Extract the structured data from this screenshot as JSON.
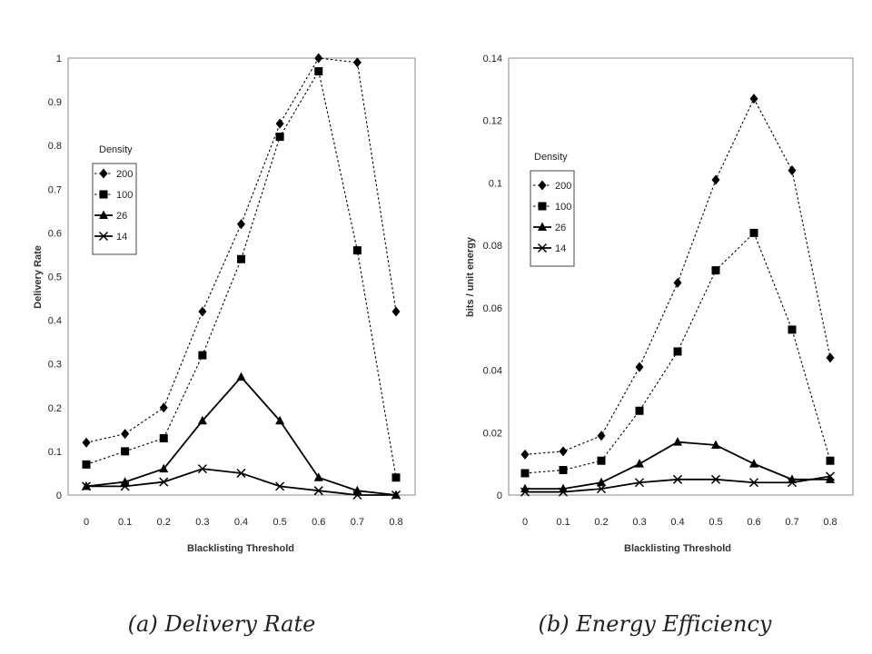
{
  "chart_data": [
    {
      "type": "line",
      "caption": "(a) Delivery Rate",
      "xlabel": "Blacklisting Threshold",
      "ylabel": "Delivery Rate",
      "x": [
        0,
        0.1,
        0.2,
        0.3,
        0.4,
        0.5,
        0.6,
        0.7,
        0.8
      ],
      "xlim": [
        0,
        0.8
      ],
      "ylim": [
        0,
        1
      ],
      "x_ticks": [
        "0",
        "0.1",
        "0.2",
        "0.3",
        "0.4",
        "0.5",
        "0.6",
        "0.7",
        "0.8"
      ],
      "y_ticks": [
        "0",
        "0.1",
        "0.2",
        "0.3",
        "0.4",
        "0.5",
        "0.6",
        "0.7",
        "0.8",
        "0.9",
        "1"
      ],
      "y_tick_values": [
        0,
        0.1,
        0.2,
        0.3,
        0.4,
        0.5,
        0.6,
        0.7,
        0.8,
        0.9,
        1
      ],
      "grid": false,
      "legend": {
        "title": "Density",
        "placement": "left-middle",
        "entries": [
          "200",
          "100",
          "26",
          "14"
        ]
      },
      "series": [
        {
          "name": "200",
          "marker": "diamond",
          "style": "dotted",
          "values": [
            0.12,
            0.14,
            0.2,
            0.42,
            0.62,
            0.85,
            1.0,
            0.99,
            0.42
          ]
        },
        {
          "name": "100",
          "marker": "square",
          "style": "dotted",
          "values": [
            0.07,
            0.1,
            0.13,
            0.32,
            0.54,
            0.82,
            0.97,
            0.56,
            0.04
          ]
        },
        {
          "name": "26",
          "marker": "triangle",
          "style": "solid",
          "values": [
            0.02,
            0.03,
            0.06,
            0.17,
            0.27,
            0.17,
            0.04,
            0.01,
            0.0
          ]
        },
        {
          "name": "14",
          "marker": "x",
          "style": "solid",
          "values": [
            0.02,
            0.02,
            0.03,
            0.06,
            0.05,
            0.02,
            0.01,
            0.0,
            0.0
          ]
        }
      ]
    },
    {
      "type": "line",
      "caption": "(b) Energy Efficiency",
      "xlabel": "Blacklisting Threshold",
      "ylabel": "bits / unit energy",
      "x": [
        0,
        0.1,
        0.2,
        0.3,
        0.4,
        0.5,
        0.6,
        0.7,
        0.8
      ],
      "xlim": [
        0,
        0.8
      ],
      "ylim": [
        0,
        0.14
      ],
      "x_ticks": [
        "0",
        "0.1",
        "0.2",
        "0.3",
        "0.4",
        "0.5",
        "0.6",
        "0.7",
        "0.8"
      ],
      "y_ticks": [
        "0",
        "0.02",
        "0.04",
        "0.06",
        "0.08",
        "0.1",
        "0.12",
        "0.14"
      ],
      "y_tick_values": [
        0,
        0.02,
        0.04,
        0.06,
        0.08,
        0.1,
        0.12,
        0.14
      ],
      "grid": false,
      "legend": {
        "title": "Density",
        "placement": "left-middle",
        "entries": [
          "200",
          "100",
          "26",
          "14"
        ]
      },
      "series": [
        {
          "name": "200",
          "marker": "diamond",
          "style": "dotted",
          "values": [
            0.013,
            0.014,
            0.019,
            0.041,
            0.068,
            0.101,
            0.127,
            0.104,
            0.044
          ]
        },
        {
          "name": "100",
          "marker": "square",
          "style": "dotted",
          "values": [
            0.007,
            0.008,
            0.011,
            0.027,
            0.046,
            0.072,
            0.084,
            0.053,
            0.011
          ]
        },
        {
          "name": "26",
          "marker": "triangle",
          "style": "solid",
          "values": [
            0.002,
            0.002,
            0.004,
            0.01,
            0.017,
            0.016,
            0.01,
            0.005,
            0.005
          ]
        },
        {
          "name": "14",
          "marker": "x",
          "style": "solid",
          "values": [
            0.001,
            0.001,
            0.002,
            0.004,
            0.005,
            0.005,
            0.004,
            0.004,
            0.006
          ]
        }
      ]
    }
  ]
}
